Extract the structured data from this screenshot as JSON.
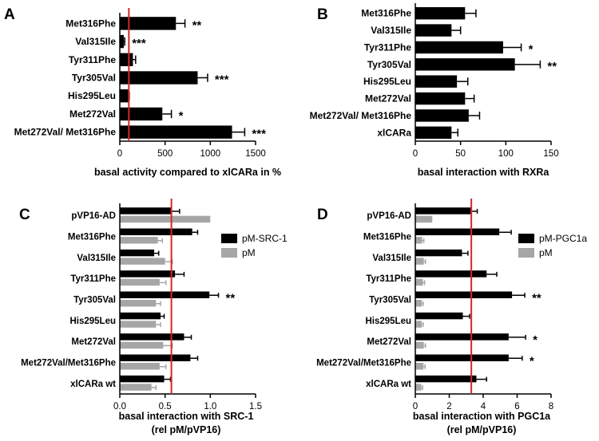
{
  "chart_data": [
    {
      "panel": "A",
      "type": "bar",
      "orientation": "horizontal",
      "categories": [
        "Met316Phe",
        "Val315Ile",
        "Tyr311Phe",
        "Tyr305Val",
        "His295Leu",
        "Met272Val",
        "Met272Val/ Met316Phe"
      ],
      "series": [
        {
          "values": [
            620,
            45,
            145,
            860,
            95,
            470,
            1240
          ],
          "errors": [
            100,
            10,
            30,
            110,
            10,
            100,
            140
          ],
          "color": "#000000"
        }
      ],
      "significance": [
        "**",
        "***",
        "",
        "***",
        "",
        "*",
        "***"
      ],
      "xlabel": "basal activity compared to xlCARa in %",
      "xlim": [
        0,
        1500
      ],
      "xticks": [
        0,
        500,
        1000,
        1500
      ],
      "reference_line": 100,
      "reference_color": "#d62728"
    },
    {
      "panel": "B",
      "type": "bar",
      "orientation": "horizontal",
      "categories": [
        "Met316Phe",
        "Val315Ile",
        "Tyr311Phe",
        "Tyr305Val",
        "His295Leu",
        "Met272Val",
        "Met272Val/ Met316Phe",
        "xlCARa"
      ],
      "series": [
        {
          "values": [
            55,
            40,
            97,
            110,
            46,
            55,
            59,
            40
          ],
          "errors": [
            12,
            10,
            20,
            28,
            12,
            10,
            12,
            7
          ],
          "color": "#000000"
        }
      ],
      "significance": [
        "",
        "",
        "*",
        "**",
        "",
        "",
        "",
        ""
      ],
      "xlabel": "basal interaction with RXRa",
      "xlim": [
        0,
        150
      ],
      "xticks": [
        0,
        50,
        100,
        150
      ]
    },
    {
      "panel": "C",
      "type": "bar",
      "orientation": "horizontal",
      "categories": [
        "pVP16-AD",
        "Met316Phe",
        "Val315Ile",
        "Tyr311Phe",
        "Tyr305Val",
        "His295Leu",
        "Met272Val",
        "Met272Val/Met316Phe",
        "xlCARa wt"
      ],
      "series": [
        {
          "name": "pM-SRC-1",
          "values": [
            0.57,
            0.8,
            0.38,
            0.61,
            0.99,
            0.45,
            0.71,
            0.78,
            0.49
          ],
          "errors": [
            0.09,
            0.06,
            0.05,
            0.1,
            0.1,
            0.04,
            0.08,
            0.08,
            0.07
          ],
          "color": "#000000"
        },
        {
          "name": "pM",
          "values": [
            1.0,
            0.42,
            0.5,
            0.44,
            0.4,
            0.4,
            0.48,
            0.44,
            0.35
          ],
          "errors": [
            0.0,
            0.05,
            0.08,
            0.07,
            0.05,
            0.05,
            0.1,
            0.07,
            0.05
          ],
          "color": "#a6a6a6"
        }
      ],
      "significance": [
        "",
        "",
        "",
        "",
        "**",
        "",
        "",
        "",
        ""
      ],
      "xlabel": "basal interaction with SRC-1",
      "xlabel2": "(rel pM/pVP16)",
      "xlim": [
        0,
        1.5
      ],
      "xticks": [
        "0.0",
        "0.5",
        "1.0",
        "1.5"
      ],
      "reference_line": 0.57,
      "reference_color": "#d62728"
    },
    {
      "panel": "D",
      "type": "bar",
      "orientation": "horizontal",
      "categories": [
        "pVP16-AD",
        "Met316Phe",
        "Val315Ile",
        "Tyr311Phe",
        "Tyr305Val",
        "His295Leu",
        "Met272Val",
        "Met272Val/Met316Phe",
        "xlCARa wt"
      ],
      "series": [
        {
          "name": "pM-PGC1a",
          "values": [
            3.3,
            4.95,
            2.75,
            4.2,
            5.7,
            2.8,
            5.5,
            5.5,
            3.6
          ],
          "errors": [
            0.35,
            0.7,
            0.35,
            0.6,
            0.75,
            0.4,
            1.0,
            0.8,
            0.6
          ],
          "color": "#000000"
        },
        {
          "name": "pM",
          "values": [
            1.0,
            0.4,
            0.5,
            0.45,
            0.38,
            0.38,
            0.5,
            0.48,
            0.35
          ],
          "errors": [
            0.0,
            0.1,
            0.1,
            0.1,
            0.08,
            0.08,
            0.1,
            0.1,
            0.08
          ],
          "color": "#a6a6a6"
        }
      ],
      "significance": [
        "",
        "",
        "",
        "",
        "**",
        "",
        "*",
        "*",
        ""
      ],
      "xlabel": "basal interaction with PGC1a",
      "xlabel2": "(rel pM/pVP16)",
      "xlim": [
        0,
        8
      ],
      "xticks": [
        "0",
        "2",
        "4",
        "6",
        "8"
      ],
      "reference_line": 3.3,
      "reference_color": "#d62728"
    }
  ]
}
